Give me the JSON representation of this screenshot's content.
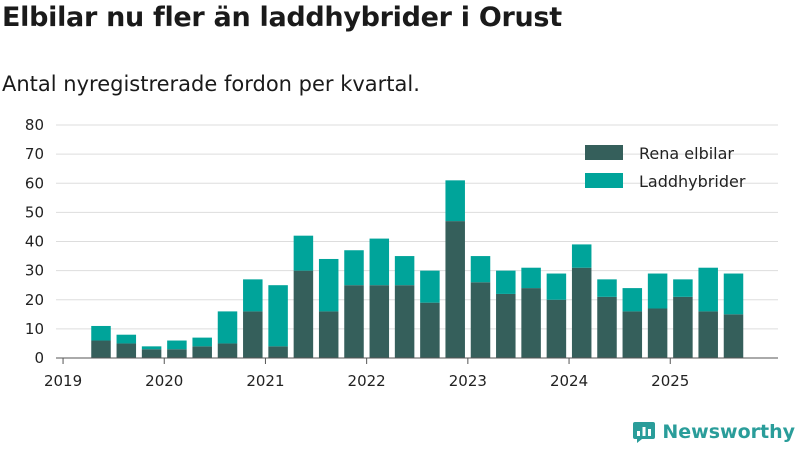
{
  "title": "Elbilar nu fler än laddhybrider i Orust",
  "subtitle": "Antal nyregistrerade fordon per kvartal.",
  "brand": "Newsworthy",
  "colors": {
    "elbil": "#355f5b",
    "hybrid": "#00a49a",
    "grid": "#dddddd",
    "axis": "#555555",
    "brand": "#2a9d9a"
  },
  "chart_data": {
    "type": "bar",
    "stacked": true,
    "title": "Elbilar nu fler än laddhybrider i Orust",
    "subtitle": "Antal nyregistrerade fordon per kvartal.",
    "xlabel": "",
    "ylabel": "",
    "ylim": [
      0,
      80
    ],
    "yticks": [
      0,
      10,
      20,
      30,
      40,
      50,
      60,
      70,
      80
    ],
    "grid": true,
    "legend_position": "top-right",
    "x_tick_labels": [
      "2019",
      "2020",
      "2021",
      "2022",
      "2023",
      "2024",
      "2025"
    ],
    "categories": [
      "2019 Q2",
      "2019 Q3",
      "2019 Q4",
      "2020 Q1",
      "2020 Q2",
      "2020 Q3",
      "2020 Q4",
      "2021 Q1",
      "2021 Q2",
      "2021 Q3",
      "2021 Q4",
      "2022 Q1",
      "2022 Q2",
      "2022 Q3",
      "2022 Q4",
      "2023 Q1",
      "2023 Q2",
      "2023 Q3",
      "2023 Q4",
      "2024 Q1",
      "2024 Q2",
      "2024 Q3",
      "2024 Q4",
      "2025 Q1",
      "2025 Q2",
      "2025 Q3"
    ],
    "series": [
      {
        "name": "Rena elbilar",
        "values": [
          6,
          5,
          3,
          3,
          4,
          5,
          16,
          4,
          30,
          16,
          25,
          25,
          25,
          19,
          47,
          26,
          22,
          24,
          20,
          31,
          21,
          16,
          17,
          21,
          16,
          15
        ]
      },
      {
        "name": "Laddhybrider",
        "values": [
          5,
          3,
          1,
          3,
          3,
          11,
          11,
          21,
          12,
          18,
          12,
          16,
          10,
          11,
          14,
          9,
          8,
          7,
          9,
          8,
          6,
          8,
          12,
          6,
          15,
          14
        ]
      }
    ]
  }
}
